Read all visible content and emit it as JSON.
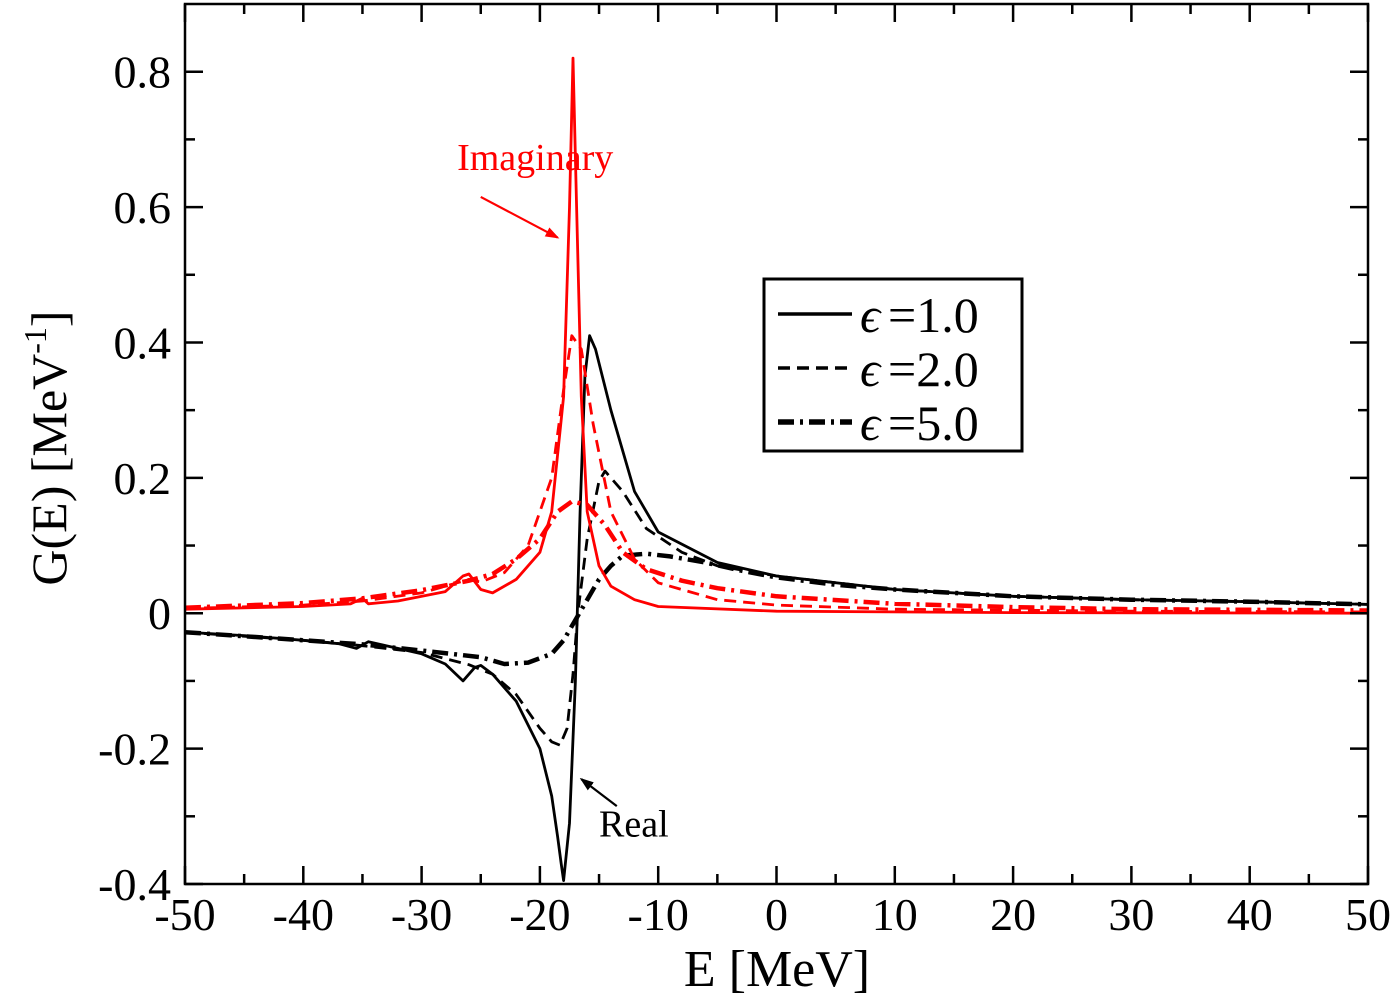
{
  "chart_data": {
    "type": "line",
    "title": "",
    "xlabel": "E [MeV]",
    "ylabel": "G(E) [MeV",
    "ylabel_superscript": "-1",
    "ylabel_suffix": "]",
    "xlim": [
      -50,
      50
    ],
    "ylim": [
      -0.4,
      0.9
    ],
    "x_ticks": [
      -50,
      -40,
      -30,
      -20,
      -10,
      0,
      10,
      20,
      30,
      40,
      50
    ],
    "x_tick_labels": [
      "-50",
      "-40",
      "-30",
      "-20",
      "-10",
      "0",
      "10",
      "20",
      "30",
      "40",
      "50"
    ],
    "y_ticks": [
      -0.4,
      -0.2,
      0,
      0.2,
      0.4,
      0.6,
      0.8
    ],
    "y_tick_labels": [
      "-0.4",
      "-0.2",
      "0",
      "0.2",
      "0.4",
      "0.6",
      "0.8"
    ],
    "colors": {
      "real": "#000000",
      "imaginary": "#ff0000"
    },
    "annotations": [
      {
        "text": "Imaginary",
        "color": "#ff0000",
        "x": -27,
        "y": 0.655,
        "arrow_from": [
          -25,
          0.615
        ],
        "arrow_to": [
          -18.5,
          0.555
        ]
      },
      {
        "text": "Real",
        "color": "#000000",
        "x": -15,
        "y": -0.33,
        "arrow_from": [
          -13.5,
          -0.285
        ],
        "arrow_to": [
          -16.5,
          -0.245
        ]
      }
    ],
    "legend": {
      "placement": "center-right",
      "entries": [
        {
          "label": "=1.0",
          "style": "solid"
        },
        {
          "label": "=2.0",
          "style": "dashed"
        },
        {
          "label": "=5.0",
          "style": "dashdot"
        }
      ]
    },
    "series": [
      {
        "name": "Real, ε=1.0",
        "part": "real",
        "style": "solid",
        "points": [
          [
            -50,
            -0.028
          ],
          [
            -45,
            -0.033
          ],
          [
            -40,
            -0.04
          ],
          [
            -37,
            -0.045
          ],
          [
            -35.5,
            -0.052
          ],
          [
            -34.5,
            -0.042
          ],
          [
            -33,
            -0.048
          ],
          [
            -30,
            -0.06
          ],
          [
            -28,
            -0.075
          ],
          [
            -26.5,
            -0.1
          ],
          [
            -25.5,
            -0.08
          ],
          [
            -25,
            -0.077
          ],
          [
            -24,
            -0.09
          ],
          [
            -22,
            -0.13
          ],
          [
            -20,
            -0.2
          ],
          [
            -19,
            -0.27
          ],
          [
            -18.5,
            -0.33
          ],
          [
            -18.2,
            -0.37
          ],
          [
            -18,
            -0.395
          ],
          [
            -17.5,
            -0.31
          ],
          [
            -17,
            -0.1
          ],
          [
            -16.6,
            0.15
          ],
          [
            -16.2,
            0.35
          ],
          [
            -15.8,
            0.41
          ],
          [
            -15.3,
            0.39
          ],
          [
            -14,
            0.3
          ],
          [
            -12,
            0.18
          ],
          [
            -10,
            0.12
          ],
          [
            -5,
            0.075
          ],
          [
            0,
            0.055
          ],
          [
            10,
            0.035
          ],
          [
            20,
            0.025
          ],
          [
            30,
            0.02
          ],
          [
            40,
            0.017
          ],
          [
            50,
            0.013
          ]
        ]
      },
      {
        "name": "Real, ε=2.0",
        "part": "real",
        "style": "dashed",
        "points": [
          [
            -50,
            -0.028
          ],
          [
            -40,
            -0.04
          ],
          [
            -35,
            -0.048
          ],
          [
            -30,
            -0.058
          ],
          [
            -26,
            -0.076
          ],
          [
            -24,
            -0.09
          ],
          [
            -22,
            -0.12
          ],
          [
            -20,
            -0.17
          ],
          [
            -19,
            -0.19
          ],
          [
            -18.3,
            -0.195
          ],
          [
            -17.7,
            -0.17
          ],
          [
            -17.2,
            -0.09
          ],
          [
            -16.8,
            0.0
          ],
          [
            -16,
            0.11
          ],
          [
            -15,
            0.195
          ],
          [
            -14.5,
            0.21
          ],
          [
            -13,
            0.18
          ],
          [
            -11,
            0.125
          ],
          [
            -8,
            0.09
          ],
          [
            -5,
            0.07
          ],
          [
            0,
            0.055
          ],
          [
            10,
            0.035
          ],
          [
            20,
            0.025
          ],
          [
            30,
            0.02
          ],
          [
            40,
            0.017
          ],
          [
            50,
            0.013
          ]
        ]
      },
      {
        "name": "Real, ε=5.0",
        "part": "real",
        "style": "dashdot",
        "points": [
          [
            -50,
            -0.028
          ],
          [
            -40,
            -0.04
          ],
          [
            -35,
            -0.046
          ],
          [
            -30,
            -0.055
          ],
          [
            -25,
            -0.065
          ],
          [
            -23,
            -0.075
          ],
          [
            -21,
            -0.073
          ],
          [
            -19,
            -0.06
          ],
          [
            -18,
            -0.04
          ],
          [
            -17,
            -0.01
          ],
          [
            -16,
            0.02
          ],
          [
            -15,
            0.05
          ],
          [
            -14,
            0.07
          ],
          [
            -13,
            0.085
          ],
          [
            -11,
            0.088
          ],
          [
            -9,
            0.084
          ],
          [
            -6,
            0.075
          ],
          [
            -3,
            0.063
          ],
          [
            0,
            0.053
          ],
          [
            5,
            0.042
          ],
          [
            10,
            0.035
          ],
          [
            20,
            0.025
          ],
          [
            30,
            0.02
          ],
          [
            40,
            0.017
          ],
          [
            50,
            0.013
          ]
        ]
      },
      {
        "name": "Imaginary, ε=1.0",
        "part": "imaginary",
        "style": "solid",
        "points": [
          [
            -50,
            0.006
          ],
          [
            -40,
            0.01
          ],
          [
            -36,
            0.014
          ],
          [
            -35,
            0.022
          ],
          [
            -34.5,
            0.014
          ],
          [
            -32,
            0.018
          ],
          [
            -28,
            0.032
          ],
          [
            -26.5,
            0.055
          ],
          [
            -26,
            0.058
          ],
          [
            -25,
            0.035
          ],
          [
            -24,
            0.03
          ],
          [
            -22,
            0.05
          ],
          [
            -20,
            0.09
          ],
          [
            -19,
            0.15
          ],
          [
            -18,
            0.32
          ],
          [
            -17.5,
            0.6
          ],
          [
            -17.2,
            0.82
          ],
          [
            -16.9,
            0.6
          ],
          [
            -16.5,
            0.32
          ],
          [
            -16,
            0.15
          ],
          [
            -15,
            0.07
          ],
          [
            -14,
            0.04
          ],
          [
            -12,
            0.02
          ],
          [
            -10,
            0.01
          ],
          [
            0,
            0.003
          ],
          [
            20,
            0.001
          ],
          [
            50,
            0.0
          ]
        ]
      },
      {
        "name": "Imaginary, ε=2.0",
        "part": "imaginary",
        "style": "dashed",
        "points": [
          [
            -50,
            0.007
          ],
          [
            -40,
            0.012
          ],
          [
            -35,
            0.018
          ],
          [
            -30,
            0.03
          ],
          [
            -27,
            0.045
          ],
          [
            -26,
            0.05
          ],
          [
            -25,
            0.046
          ],
          [
            -23,
            0.06
          ],
          [
            -21,
            0.1
          ],
          [
            -19,
            0.2
          ],
          [
            -18,
            0.33
          ],
          [
            -17.3,
            0.41
          ],
          [
            -16.5,
            0.39
          ],
          [
            -15.5,
            0.28
          ],
          [
            -14,
            0.15
          ],
          [
            -12,
            0.08
          ],
          [
            -10,
            0.045
          ],
          [
            -5,
            0.02
          ],
          [
            0,
            0.012
          ],
          [
            10,
            0.006
          ],
          [
            30,
            0.003
          ],
          [
            50,
            0.002
          ]
        ]
      },
      {
        "name": "Imaginary, ε=5.0",
        "part": "imaginary",
        "style": "dashdot",
        "points": [
          [
            -50,
            0.008
          ],
          [
            -40,
            0.015
          ],
          [
            -35,
            0.022
          ],
          [
            -30,
            0.034
          ],
          [
            -26,
            0.048
          ],
          [
            -24,
            0.058
          ],
          [
            -22,
            0.08
          ],
          [
            -20,
            0.11
          ],
          [
            -18.5,
            0.15
          ],
          [
            -17.3,
            0.165
          ],
          [
            -16,
            0.16
          ],
          [
            -14.5,
            0.13
          ],
          [
            -13,
            0.09
          ],
          [
            -11,
            0.065
          ],
          [
            -8,
            0.048
          ],
          [
            -5,
            0.037
          ],
          [
            0,
            0.025
          ],
          [
            10,
            0.014
          ],
          [
            20,
            0.009
          ],
          [
            30,
            0.006
          ],
          [
            40,
            0.005
          ],
          [
            50,
            0.004
          ]
        ]
      }
    ]
  }
}
